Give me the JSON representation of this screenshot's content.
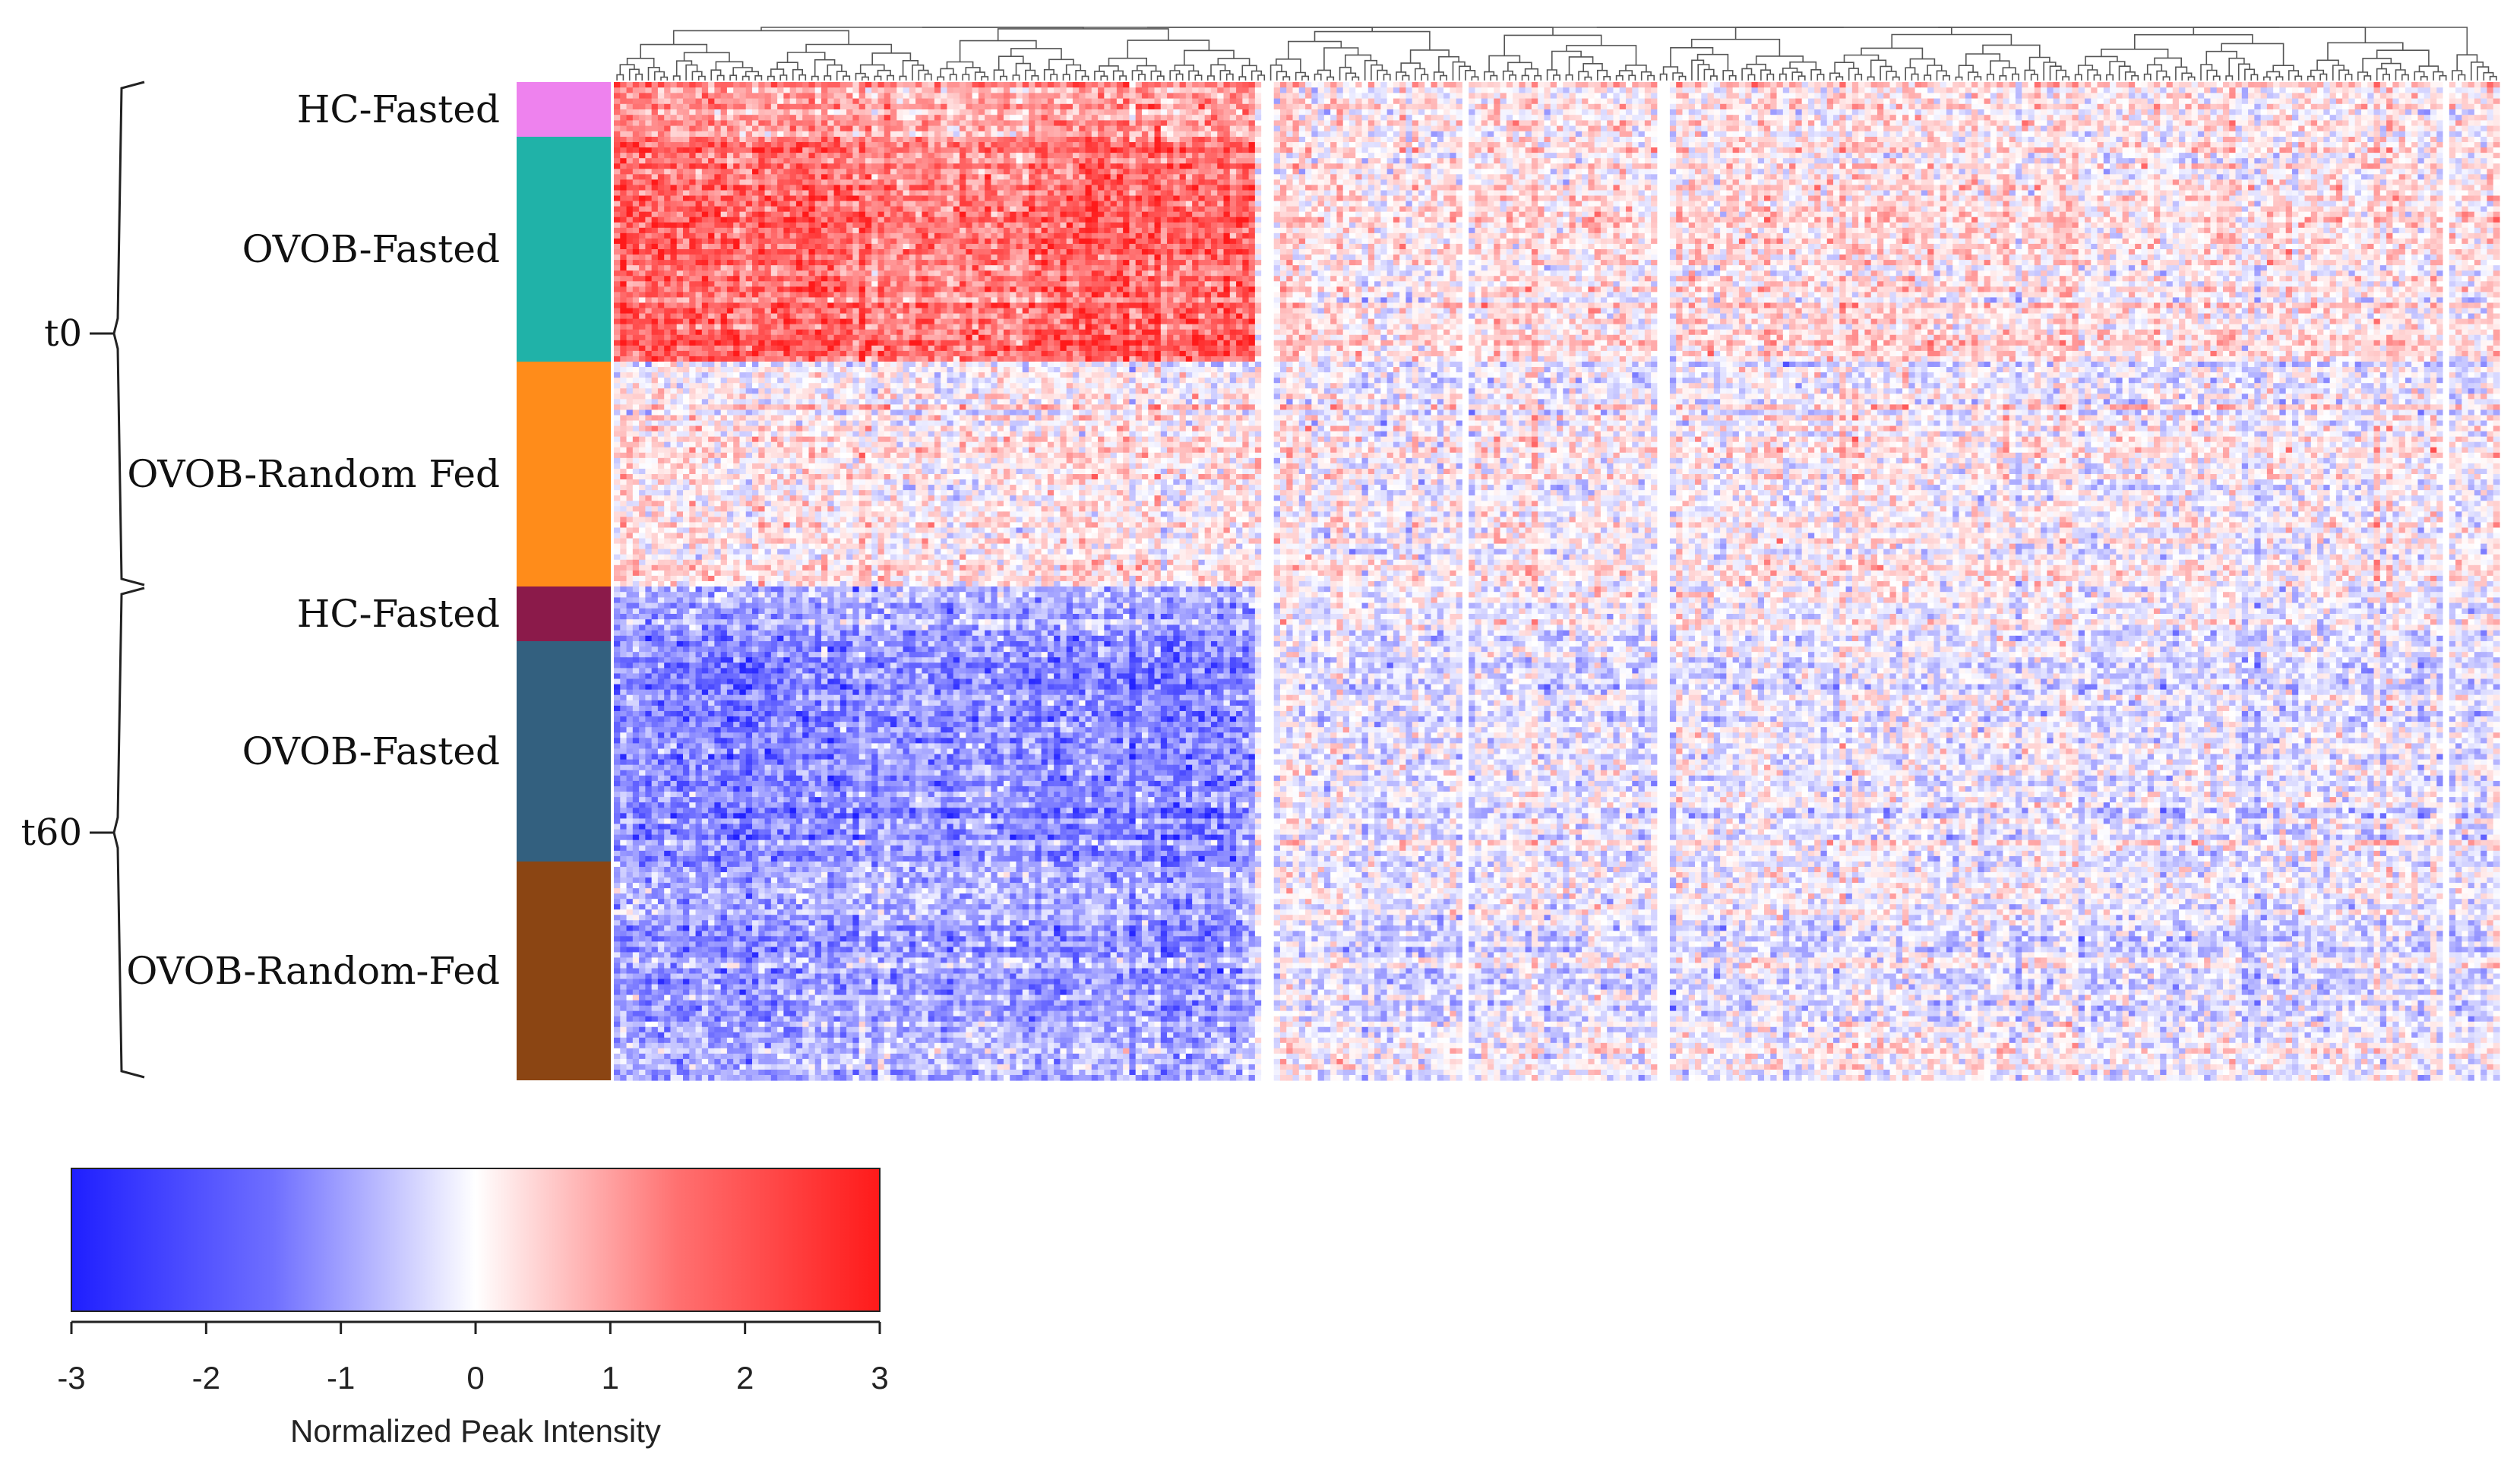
{
  "chart_data": {
    "type": "heatmap",
    "title": "",
    "value_scale": {
      "label": "Normalized Peak Intensity",
      "min": -3,
      "max": 3,
      "ticks": [
        "-3",
        "-2",
        "-1",
        "0",
        "1",
        "2",
        "3"
      ],
      "colors": {
        "low": "#1f1fff",
        "mid": "#ffffff",
        "high": "#ff1a1a"
      }
    },
    "row_groups": [
      {
        "name": "t0",
        "sample_groups": [
          {
            "name": "HC-Fasted",
            "color": "#ee82ee",
            "profile": 0.55
          },
          {
            "name": "OVOB-Fasted",
            "color": "#20b2a8",
            "profile": 0.9
          },
          {
            "name": "OVOB-Random Fed",
            "color": "#ff8c1a",
            "profile": 0.1
          }
        ]
      },
      {
        "name": "t60",
        "sample_groups": [
          {
            "name": "HC-Fasted",
            "color": "#8b1a4a",
            "profile": -0.6
          },
          {
            "name": "OVOB-Fasted",
            "color": "#33607f",
            "profile": -0.75
          },
          {
            "name": "OVOB-Random-Fed",
            "color": "#8b4513",
            "profile": -0.55
          }
        ]
      }
    ],
    "column_dendrogram": true
  }
}
